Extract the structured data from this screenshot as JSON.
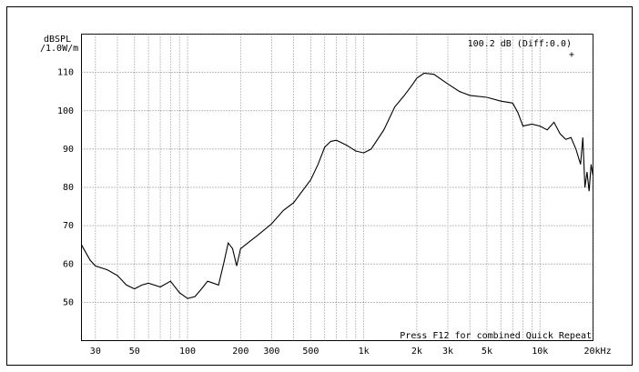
{
  "chart_data": {
    "type": "line",
    "log_x": true,
    "ylabel": [
      "dBSPL",
      "/1.0W/m"
    ],
    "annotations": [
      "100.2 dB (Diff:0.0)",
      "Press F12 for combined Quick Repeat"
    ],
    "xlim": [
      25,
      20000
    ],
    "ylim": [
      40,
      120
    ],
    "xticks": [
      30,
      50,
      100,
      200,
      300,
      500,
      {
        "value": 1000,
        "label": "1k"
      },
      {
        "value": 2000,
        "label": "2k"
      },
      {
        "value": 3000,
        "label": "3k"
      },
      {
        "value": 5000,
        "label": "5k"
      },
      {
        "value": 10000,
        "label": "10k"
      },
      {
        "value": 20000,
        "label": "20kHz"
      }
    ],
    "xminor_ticks": [
      40,
      60,
      70,
      80,
      90,
      400,
      600,
      700,
      800,
      900,
      4000,
      6000,
      7000,
      8000,
      9000
    ],
    "yticks": [
      50,
      60,
      70,
      80,
      90,
      100,
      110
    ],
    "ygrid": [
      120
    ],
    "grid": true,
    "x": [
      25,
      28,
      30,
      35,
      40,
      45,
      50,
      55,
      60,
      70,
      80,
      90,
      100,
      110,
      120,
      130,
      140,
      150,
      160,
      170,
      180,
      190,
      200,
      220,
      250,
      300,
      350,
      400,
      500,
      550,
      600,
      650,
      700,
      800,
      900,
      1000,
      1100,
      1300,
      1500,
      1700,
      1900,
      2000,
      2200,
      2500,
      3000,
      3500,
      4000,
      5000,
      6000,
      7000,
      7500,
      8000,
      9000,
      10000,
      11000,
      12000,
      13000,
      14000,
      15000,
      16000,
      17000,
      17500,
      18000,
      18500,
      19000,
      19500,
      20000
    ],
    "series": [
      {
        "color": "#000000",
        "values": [
          65,
          61,
          59.5,
          58.5,
          57,
          54.5,
          53.5,
          54.5,
          55,
          54,
          55.5,
          52.5,
          51,
          51.5,
          53.5,
          55.5,
          55,
          54.5,
          60,
          65.5,
          64,
          59.5,
          64,
          65.5,
          67.5,
          70.5,
          74,
          76,
          82,
          86,
          90.5,
          92,
          92.3,
          91,
          89.5,
          89,
          90,
          95,
          101,
          104,
          107,
          108.5,
          109.8,
          109.5,
          107,
          105,
          104,
          103.5,
          102.5,
          102,
          99.5,
          96,
          96.5,
          96,
          95,
          97,
          94,
          92.5,
          93,
          90,
          86,
          93,
          80,
          84,
          79,
          86,
          83
        ]
      }
    ]
  }
}
